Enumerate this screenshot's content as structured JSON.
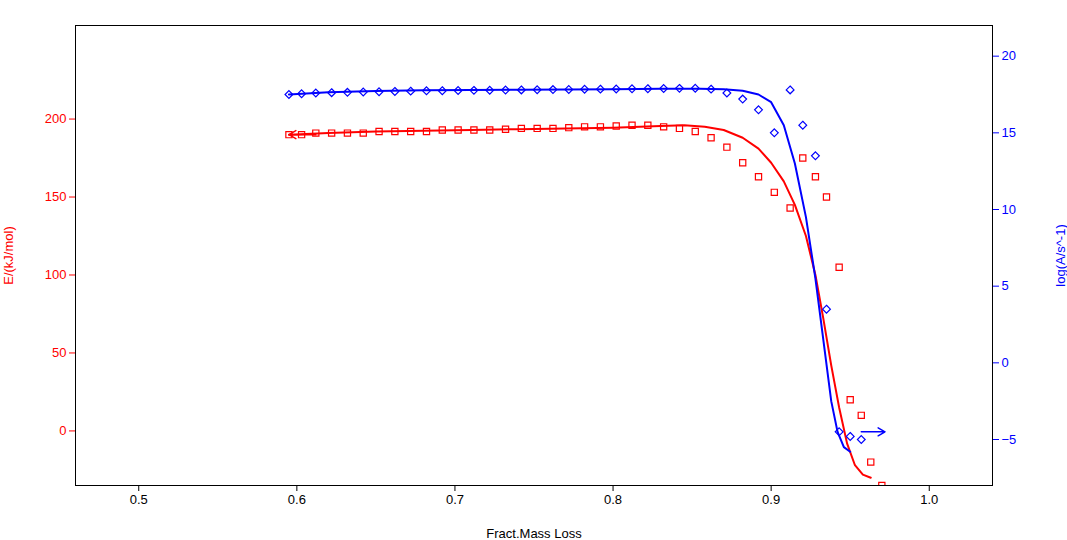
{
  "chart_data": {
    "type": "line",
    "xlabel": "Fract.Mass Loss",
    "ylabel": "E/(kJ/mol)",
    "y2label": "log(A/s^-1)",
    "xlim": [
      0.46,
      1.04
    ],
    "ylim": [
      -35,
      260
    ],
    "y2lim": [
      -8,
      22
    ],
    "xticks": [
      0.5,
      0.6,
      0.7,
      0.8,
      0.9,
      {
        "value": 1.0,
        "label": "1.0"
      }
    ],
    "yticks": [
      0,
      50,
      100,
      150,
      200
    ],
    "y2ticks": [
      -5,
      0,
      5,
      10,
      15,
      20
    ],
    "grid": false,
    "series": [
      {
        "type": "scatter",
        "marker": "diamond",
        "color": "#0000FF",
        "axis": "y2",
        "x": [
          0.595,
          0.603,
          0.612,
          0.622,
          0.632,
          0.642,
          0.652,
          0.662,
          0.672,
          0.682,
          0.692,
          0.702,
          0.712,
          0.722,
          0.732,
          0.742,
          0.752,
          0.762,
          0.772,
          0.782,
          0.792,
          0.802,
          0.812,
          0.822,
          0.832,
          0.842,
          0.852,
          0.862,
          0.872,
          0.882,
          0.892,
          0.902,
          0.912,
          0.92,
          0.928,
          0.935,
          0.943,
          0.95,
          0.957
        ],
        "values": [
          17.5,
          17.55,
          17.6,
          17.62,
          17.64,
          17.66,
          17.68,
          17.7,
          17.72,
          17.74,
          17.75,
          17.76,
          17.77,
          17.78,
          17.79,
          17.8,
          17.81,
          17.82,
          17.83,
          17.84,
          17.85,
          17.86,
          17.87,
          17.88,
          17.89,
          17.9,
          17.91,
          17.85,
          17.6,
          17.2,
          16.5,
          15.0,
          17.8,
          15.5,
          13.5,
          3.5,
          -4.5,
          -4.8,
          -5.0
        ]
      },
      {
        "type": "scatter",
        "marker": "square",
        "color": "#FF0000",
        "axis": "y",
        "x": [
          0.595,
          0.603,
          0.612,
          0.622,
          0.632,
          0.642,
          0.652,
          0.662,
          0.672,
          0.682,
          0.692,
          0.702,
          0.712,
          0.722,
          0.732,
          0.742,
          0.752,
          0.762,
          0.772,
          0.782,
          0.792,
          0.802,
          0.812,
          0.822,
          0.832,
          0.842,
          0.852,
          0.862,
          0.872,
          0.882,
          0.892,
          0.902,
          0.912,
          0.92,
          0.928,
          0.935,
          0.943,
          0.95,
          0.957,
          0.963,
          0.97
        ],
        "values": [
          190,
          190,
          191,
          191,
          191,
          191,
          192,
          192,
          192,
          192,
          193,
          193,
          193,
          193,
          193.5,
          194,
          194,
          194,
          194.5,
          195,
          195,
          195.5,
          196,
          196,
          195,
          194,
          192,
          188,
          182,
          172,
          163,
          153,
          143,
          175,
          163,
          150,
          105,
          20,
          10,
          -20,
          -35
        ]
      },
      {
        "type": "line",
        "color": "#0000FF",
        "axis": "y2",
        "x": [
          0.595,
          0.62,
          0.65,
          0.68,
          0.71,
          0.74,
          0.77,
          0.8,
          0.83,
          0.855,
          0.87,
          0.882,
          0.892,
          0.9,
          0.908,
          0.915,
          0.922,
          0.928,
          0.933,
          0.938,
          0.942,
          0.946,
          0.95
        ],
        "values": [
          17.5,
          17.65,
          17.73,
          17.77,
          17.79,
          17.81,
          17.83,
          17.85,
          17.87,
          17.88,
          17.85,
          17.75,
          17.5,
          17.0,
          15.5,
          13.0,
          9.5,
          5.5,
          1.5,
          -2.5,
          -4.5,
          -5.5,
          -5.8
        ]
      },
      {
        "type": "line",
        "color": "#FF0000",
        "axis": "y",
        "x": [
          0.595,
          0.62,
          0.65,
          0.68,
          0.71,
          0.74,
          0.77,
          0.8,
          0.83,
          0.845,
          0.858,
          0.87,
          0.882,
          0.892,
          0.9,
          0.908,
          0.915,
          0.922,
          0.928,
          0.933,
          0.938,
          0.943,
          0.948,
          0.953,
          0.958,
          0.963
        ],
        "values": [
          190,
          191,
          192,
          192.5,
          193,
          193.5,
          194,
          194.5,
          195.5,
          196,
          195,
          193,
          188,
          181,
          172,
          160,
          145,
          125,
          100,
          72,
          42,
          15,
          -8,
          -22,
          -28,
          -30
        ]
      }
    ],
    "arrows": [
      {
        "x_from": 0.612,
        "x_to": 0.595,
        "y": 190,
        "color": "#FF0000",
        "axis": "y"
      },
      {
        "x_from": 0.957,
        "x_to": 0.972,
        "y": -4.5,
        "color": "#0000FF",
        "axis": "y2"
      }
    ]
  }
}
